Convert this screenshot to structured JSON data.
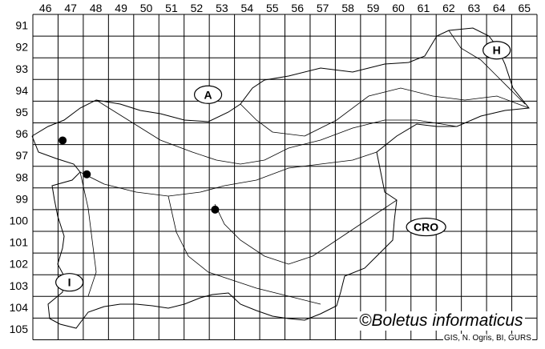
{
  "map": {
    "columns": [
      "46",
      "47",
      "48",
      "49",
      "50",
      "51",
      "52",
      "53",
      "54",
      "55",
      "56",
      "57",
      "58",
      "59",
      "60",
      "61",
      "62",
      "63",
      "64",
      "65"
    ],
    "rows": [
      "91",
      "92",
      "93",
      "94",
      "95",
      "96",
      "97",
      "98",
      "99",
      "100",
      "101",
      "102",
      "103",
      "104",
      "105"
    ],
    "country_labels": [
      {
        "text": "A",
        "col": 52.95,
        "row": 94.7
      },
      {
        "text": "H",
        "col": 64.4,
        "row": 92.65
      },
      {
        "text": "CRO",
        "col": 61.6,
        "row": 100.8
      },
      {
        "text": "I",
        "col": 47.45,
        "row": 103.35
      }
    ],
    "occurrences": [
      {
        "col": 47.18,
        "row": 96.81
      },
      {
        "col": 48.14,
        "row": 98.37
      },
      {
        "col": 53.23,
        "row": 100.0
      }
    ],
    "marker_color": "#000000",
    "line_color": "#000000"
  },
  "credit": "©Boletus informaticus",
  "source": "GIS, N. Ogris, BI, GURS"
}
